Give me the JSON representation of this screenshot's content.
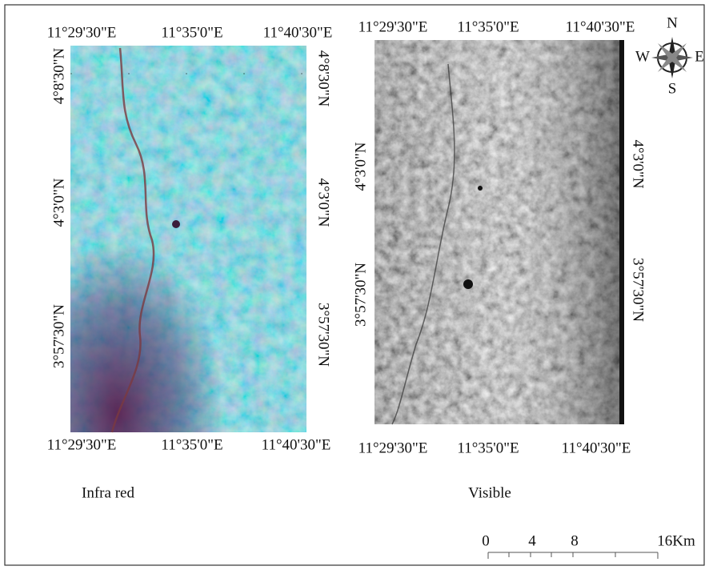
{
  "maps": [
    {
      "caption": "Infra red",
      "top_labels": [
        "11°29'30\"E",
        "11°35'0\"E",
        "11°40'30\"E"
      ],
      "bottom_labels": [
        "11°29'30\"E",
        "11°35'0\"E",
        "11°40'30\"E"
      ],
      "left_labels": [
        "4°8'30\"N",
        "4°3'0\"N",
        "3°57'30\"N"
      ],
      "right_labels": [
        "4°8'30\"N",
        "4°3'0\"N",
        "3°57'30\"N"
      ]
    },
    {
      "caption": "Visible",
      "top_labels": [
        "11°29'30\"E",
        "11°35'0\"E",
        "11°40'30\"E"
      ],
      "bottom_labels": [
        "11°29'30\"E",
        "11°35'0\"E",
        "11°40'30\"E"
      ],
      "left_labels": [
        "4°3'0\"N",
        "3°57'30\"N"
      ],
      "right_labels": [
        "4°3'0\"N",
        "3°57'30\"N"
      ]
    }
  ],
  "compass": {
    "north": "N",
    "south": "S",
    "east": "E",
    "west": "W"
  },
  "scale_bar": {
    "labels": [
      "0",
      "4",
      "8",
      "16Km"
    ]
  }
}
